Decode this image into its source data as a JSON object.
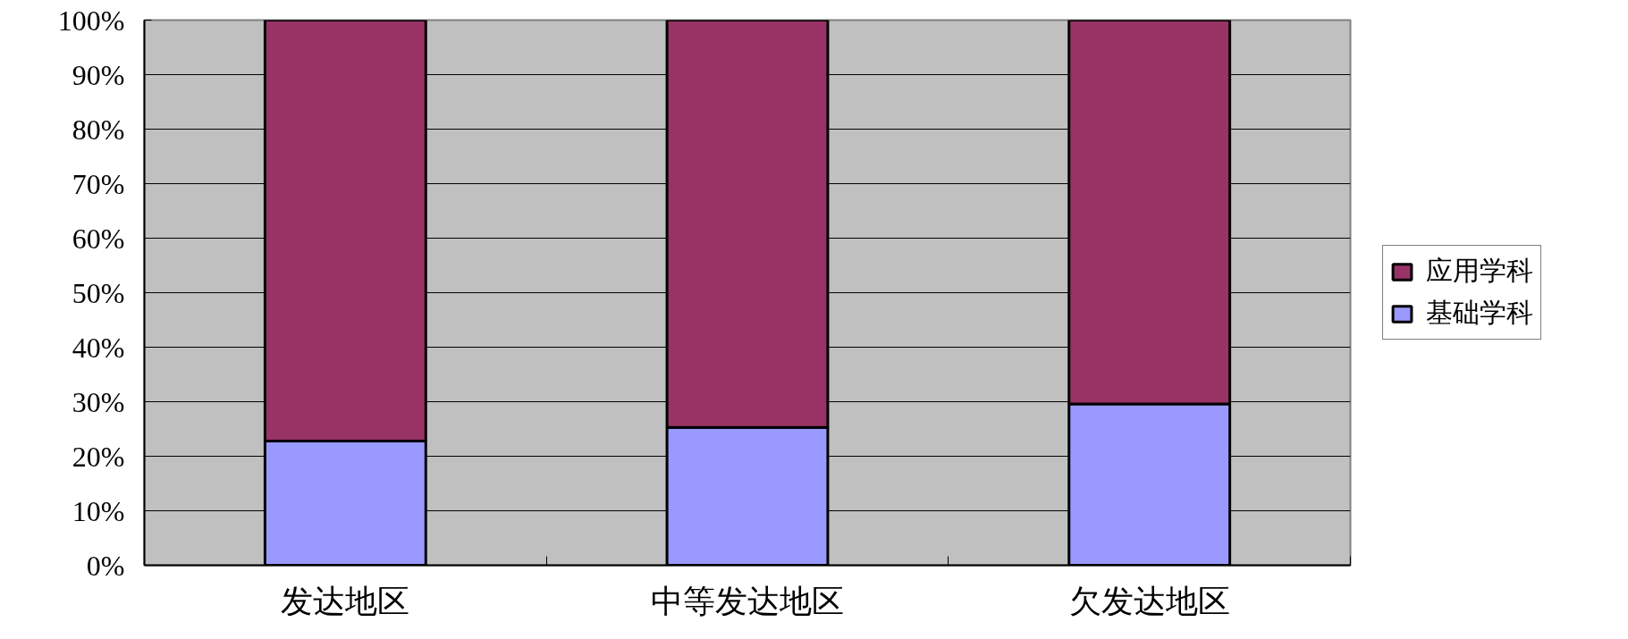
{
  "chart_data": {
    "type": "bar",
    "stacked": true,
    "categories": [
      "发达地区",
      "中等发达地区",
      "欠发达地区"
    ],
    "series": [
      {
        "name": "基础学科",
        "color": "#9999ff",
        "values": [
          22.8,
          25.3,
          29.6
        ]
      },
      {
        "name": "应用学科",
        "color": "#993366",
        "values": [
          77.2,
          74.7,
          70.4
        ]
      }
    ],
    "ylim": [
      0,
      100
    ],
    "yticks": [
      {
        "value": 0,
        "label": "0%"
      },
      {
        "value": 10,
        "label": "10%"
      },
      {
        "value": 20,
        "label": "20%"
      },
      {
        "value": 30,
        "label": "30%"
      },
      {
        "value": 40,
        "label": "40%"
      },
      {
        "value": 50,
        "label": "50%"
      },
      {
        "value": 60,
        "label": "60%"
      },
      {
        "value": 70,
        "label": "70%"
      },
      {
        "value": 80,
        "label": "80%"
      },
      {
        "value": 90,
        "label": "90%"
      },
      {
        "value": 100,
        "label": "100%"
      }
    ],
    "grid": "y",
    "legend": "right"
  }
}
